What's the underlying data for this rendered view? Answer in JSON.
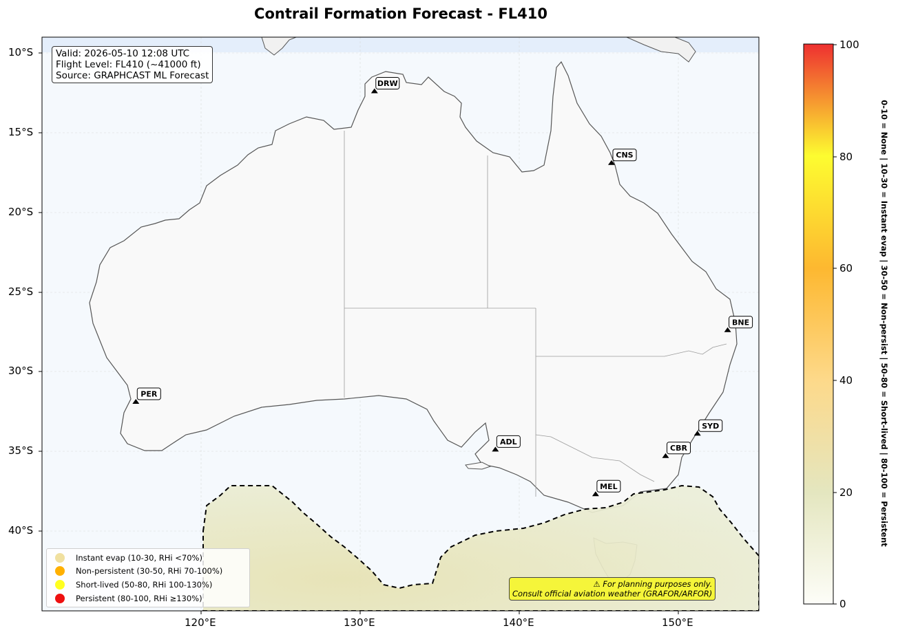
{
  "title": "Contrail Formation Forecast - FL410",
  "info": {
    "valid": "Valid: 2026-05-10 12:08 UTC",
    "flight_level": "Flight Level: FL410 (~41000 ft)",
    "source": "Source: GRAPHCAST ML Forecast"
  },
  "lat_ticks": [
    "10°S",
    "15°S",
    "20°S",
    "25°S",
    "30°S",
    "35°S",
    "40°S"
  ],
  "lon_ticks": [
    "120°E",
    "130°E",
    "140°E",
    "150°E"
  ],
  "airports": [
    {
      "code": "DRW",
      "lon": 130.9,
      "lat": -12.4
    },
    {
      "code": "CNS",
      "lon": 145.8,
      "lat": -16.9
    },
    {
      "code": "BNE",
      "lon": 153.1,
      "lat": -27.4
    },
    {
      "code": "PER",
      "lon": 115.9,
      "lat": -31.9
    },
    {
      "code": "ADL",
      "lon": 138.5,
      "lat": -34.9
    },
    {
      "code": "SYD",
      "lon": 151.2,
      "lat": -33.9
    },
    {
      "code": "CBR",
      "lon": 149.2,
      "lat": -35.3
    },
    {
      "code": "MEL",
      "lon": 144.8,
      "lat": -37.7
    }
  ],
  "legend": [
    {
      "label": "Instant evap (10-30, RHi <70%)",
      "color": "#f0e0a0"
    },
    {
      "label": "Non-persistent (30-50, RHi 70-100%)",
      "color": "#ffb000"
    },
    {
      "label": "Short-lived (50-80, RHi 100-130%)",
      "color": "#ffff20"
    },
    {
      "label": "Persistent (80-100, RHi ≥130%)",
      "color": "#ee1010"
    }
  ],
  "warning": {
    "line1": "⚠ For planning purposes only.",
    "line2": "Consult official aviation weather (GRAFOR/ARFOR)"
  },
  "colorbar": {
    "ticks": [
      "0",
      "20",
      "40",
      "60",
      "80",
      "100"
    ],
    "label": "0-10 = None  |  10-30 = Instant evap  |  30-50 = Non-persist  |  50-80 = Short-lived  |  80-100 = Persistent",
    "colors": {
      "c0": "#fdfdf8",
      "c20": "#e4e6bf",
      "c40": "#fdd98a",
      "c60": "#fdb830",
      "c80": "#fdfc30",
      "c100": "#ee3030"
    }
  },
  "colors": {
    "ocean": "#f5f9fd",
    "land": "#f9f9f9",
    "region_fill": "#e7e7c2",
    "top_band": "#e4eefb"
  }
}
